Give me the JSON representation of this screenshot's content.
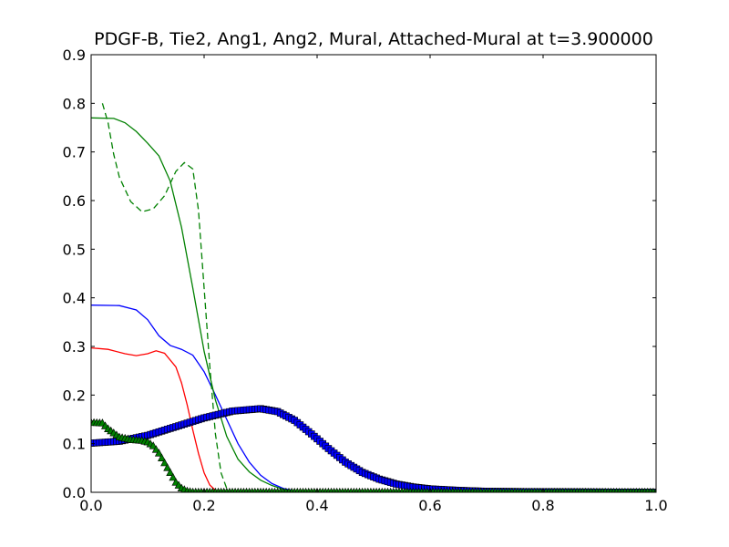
{
  "chart_data": {
    "type": "line",
    "title": "PDGF-B, Tie2, Ang1, Ang2, Mural, Attached-Mural at t=3.900000",
    "xlabel": "",
    "ylabel": "",
    "xlim": [
      0.0,
      1.0
    ],
    "ylim": [
      0.0,
      0.9
    ],
    "x_ticks": [
      "0.0",
      "0.2",
      "0.4",
      "0.6",
      "0.8",
      "1.0"
    ],
    "y_ticks": [
      "0.0",
      "0.1",
      "0.2",
      "0.3",
      "0.4",
      "0.5",
      "0.6",
      "0.7",
      "0.8",
      "0.9"
    ],
    "grid": false,
    "legend": "none",
    "series": [
      {
        "color": "#0000ff",
        "line_style": "solid",
        "marker": "none",
        "points": [
          [
            0.0,
            0.385
          ],
          [
            0.05,
            0.384
          ],
          [
            0.08,
            0.375
          ],
          [
            0.1,
            0.355
          ],
          [
            0.12,
            0.322
          ],
          [
            0.14,
            0.302
          ],
          [
            0.16,
            0.294
          ],
          [
            0.18,
            0.282
          ],
          [
            0.2,
            0.248
          ],
          [
            0.22,
            0.2
          ],
          [
            0.24,
            0.15
          ],
          [
            0.26,
            0.1
          ],
          [
            0.28,
            0.062
          ],
          [
            0.3,
            0.035
          ],
          [
            0.32,
            0.018
          ],
          [
            0.34,
            0.008
          ],
          [
            0.36,
            0.003
          ],
          [
            0.38,
            0.001
          ],
          [
            0.4,
            0.0
          ],
          [
            1.0,
            0.0
          ]
        ]
      },
      {
        "color": "#ff0000",
        "line_style": "solid",
        "marker": "none",
        "points": [
          [
            0.0,
            0.297
          ],
          [
            0.03,
            0.294
          ],
          [
            0.06,
            0.285
          ],
          [
            0.08,
            0.281
          ],
          [
            0.1,
            0.285
          ],
          [
            0.115,
            0.291
          ],
          [
            0.13,
            0.286
          ],
          [
            0.15,
            0.258
          ],
          [
            0.16,
            0.225
          ],
          [
            0.17,
            0.18
          ],
          [
            0.18,
            0.128
          ],
          [
            0.19,
            0.08
          ],
          [
            0.2,
            0.04
          ],
          [
            0.21,
            0.015
          ],
          [
            0.22,
            0.004
          ],
          [
            0.23,
            0.0
          ],
          [
            1.0,
            0.0
          ]
        ]
      },
      {
        "color": "#008000",
        "line_style": "solid",
        "marker": "none",
        "points": [
          [
            0.0,
            0.77
          ],
          [
            0.04,
            0.769
          ],
          [
            0.06,
            0.76
          ],
          [
            0.08,
            0.742
          ],
          [
            0.1,
            0.718
          ],
          [
            0.12,
            0.692
          ],
          [
            0.14,
            0.64
          ],
          [
            0.16,
            0.545
          ],
          [
            0.18,
            0.42
          ],
          [
            0.2,
            0.29
          ],
          [
            0.22,
            0.19
          ],
          [
            0.24,
            0.115
          ],
          [
            0.26,
            0.068
          ],
          [
            0.28,
            0.042
          ],
          [
            0.3,
            0.025
          ],
          [
            0.32,
            0.014
          ],
          [
            0.34,
            0.006
          ],
          [
            0.36,
            0.002
          ],
          [
            0.38,
            0.0
          ],
          [
            1.0,
            0.0
          ]
        ]
      },
      {
        "color": "#008000",
        "line_style": "dashed",
        "marker": "none",
        "points": [
          [
            0.02,
            0.8
          ],
          [
            0.03,
            0.76
          ],
          [
            0.04,
            0.695
          ],
          [
            0.05,
            0.648
          ],
          [
            0.07,
            0.598
          ],
          [
            0.09,
            0.577
          ],
          [
            0.11,
            0.583
          ],
          [
            0.13,
            0.61
          ],
          [
            0.15,
            0.66
          ],
          [
            0.165,
            0.678
          ],
          [
            0.18,
            0.665
          ],
          [
            0.19,
            0.58
          ],
          [
            0.2,
            0.42
          ],
          [
            0.21,
            0.26
          ],
          [
            0.22,
            0.12
          ],
          [
            0.23,
            0.04
          ],
          [
            0.24,
            0.008
          ],
          [
            0.25,
            0.0
          ],
          [
            1.0,
            0.0
          ]
        ]
      },
      {
        "color": "#0000ff",
        "line_style": "solid",
        "marker": "square",
        "points": [
          [
            0.0,
            0.101
          ],
          [
            0.05,
            0.105
          ],
          [
            0.1,
            0.117
          ],
          [
            0.15,
            0.135
          ],
          [
            0.2,
            0.153
          ],
          [
            0.25,
            0.167
          ],
          [
            0.3,
            0.172
          ],
          [
            0.33,
            0.166
          ],
          [
            0.36,
            0.148
          ],
          [
            0.39,
            0.12
          ],
          [
            0.42,
            0.09
          ],
          [
            0.45,
            0.062
          ],
          [
            0.48,
            0.041
          ],
          [
            0.51,
            0.027
          ],
          [
            0.54,
            0.017
          ],
          [
            0.57,
            0.011
          ],
          [
            0.6,
            0.007
          ],
          [
            0.65,
            0.004
          ],
          [
            0.7,
            0.002
          ],
          [
            0.75,
            0.0015
          ],
          [
            0.8,
            0.001
          ],
          [
            0.9,
            0.0005
          ],
          [
            1.0,
            0.0
          ]
        ]
      },
      {
        "color": "#008000",
        "line_style": "solid",
        "marker": "triangle",
        "points": [
          [
            0.0,
            0.143
          ],
          [
            0.02,
            0.142
          ],
          [
            0.03,
            0.13
          ],
          [
            0.05,
            0.113
          ],
          [
            0.07,
            0.108
          ],
          [
            0.09,
            0.106
          ],
          [
            0.1,
            0.103
          ],
          [
            0.11,
            0.095
          ],
          [
            0.12,
            0.08
          ],
          [
            0.13,
            0.06
          ],
          [
            0.14,
            0.04
          ],
          [
            0.15,
            0.02
          ],
          [
            0.16,
            0.008
          ],
          [
            0.17,
            0.002
          ],
          [
            0.18,
            0.0
          ],
          [
            0.5,
            0.0
          ],
          [
            1.0,
            0.0
          ]
        ]
      }
    ]
  }
}
